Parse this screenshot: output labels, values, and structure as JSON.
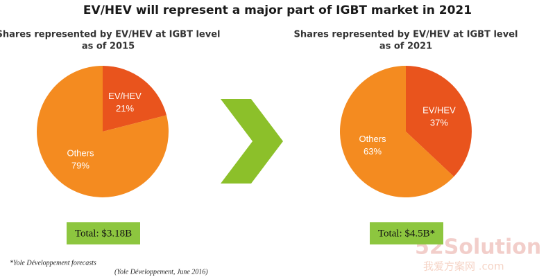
{
  "title": "EV/HEV will represent a major part of IGBT market in 2021",
  "chart_data": [
    {
      "type": "pie",
      "title": "Shares represented by EV/HEV at IGBT level",
      "subtitle": "as of 2015",
      "categories": [
        "EV/HEV",
        "Others"
      ],
      "values": [
        21,
        79
      ],
      "value_labels": [
        "21%",
        "79%"
      ],
      "colors": [
        "#e9541d",
        "#f48b20"
      ],
      "total": "Total: $3.18B"
    },
    {
      "type": "pie",
      "title": "Shares represented by EV/HEV at IGBT level",
      "subtitle": "as of 2021",
      "categories": [
        "EV/HEV",
        "Others"
      ],
      "values": [
        37,
        63
      ],
      "value_labels": [
        "37%",
        "63%"
      ],
      "colors": [
        "#e9541d",
        "#f48b20"
      ],
      "total": "Total: $4.5B*"
    }
  ],
  "footnote": "*Yole Développement forecasts",
  "source": "(Yole Développement, June 2016)",
  "watermark": "52Solution",
  "watermark_sub": "我爱方案网 .com"
}
